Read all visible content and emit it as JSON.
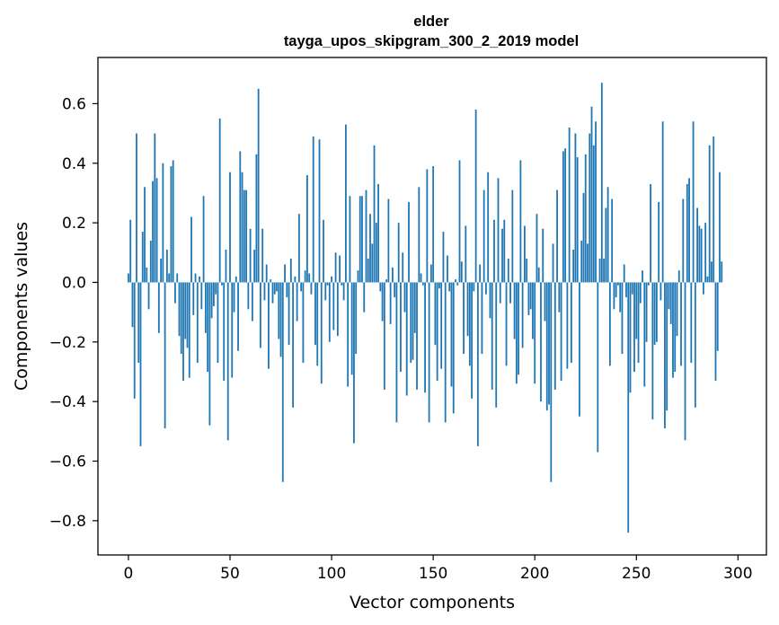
{
  "chart_data": {
    "type": "bar",
    "title": [
      "elder",
      "tayga_upos_skipgram_300_2_2019 model"
    ],
    "xlabel": "Vector components",
    "ylabel": "Components values",
    "xlim": [
      -15,
      314
    ],
    "ylim": [
      -0.915,
      0.755
    ],
    "xticks": [
      0,
      50,
      100,
      150,
      200,
      250,
      300
    ],
    "xtick_labels": [
      "0",
      "50",
      "100",
      "150",
      "200",
      "250",
      "300"
    ],
    "yticks": [
      -0.8,
      -0.6,
      -0.4,
      -0.2,
      0.0,
      0.2,
      0.4,
      0.6
    ],
    "ytick_labels": [
      "−0.8",
      "−0.6",
      "−0.4",
      "−0.2",
      "0.0",
      "0.2",
      "0.4",
      "0.6"
    ],
    "bar_color": "#1f77b4",
    "grid": false,
    "values": [
      0.03,
      0.21,
      -0.15,
      -0.39,
      0.5,
      -0.27,
      -0.55,
      0.17,
      0.32,
      0.05,
      -0.09,
      0.14,
      0.34,
      0.5,
      0.35,
      -0.17,
      0.08,
      0.4,
      -0.49,
      0.11,
      0.03,
      0.39,
      0.41,
      -0.07,
      0.03,
      -0.18,
      -0.24,
      -0.33,
      -0.19,
      -0.22,
      -0.32,
      0.22,
      -0.11,
      0.03,
      -0.27,
      0.02,
      -0.09,
      0.29,
      -0.17,
      -0.3,
      -0.48,
      -0.12,
      -0.08,
      -0.04,
      -0.27,
      0.55,
      -0.01,
      -0.33,
      0.11,
      -0.53,
      0.37,
      -0.32,
      -0.1,
      0.02,
      -0.23,
      0.44,
      0.37,
      0.31,
      0.31,
      -0.09,
      0.18,
      -0.13,
      0.11,
      0.43,
      0.65,
      -0.22,
      0.18,
      -0.06,
      0.06,
      -0.29,
      0.01,
      -0.07,
      -0.04,
      -0.03,
      -0.19,
      -0.25,
      -0.67,
      0.06,
      -0.05,
      -0.21,
      0.08,
      -0.42,
      0.02,
      -0.13,
      0.23,
      -0.03,
      -0.27,
      0.04,
      0.36,
      0.03,
      -0.04,
      0.49,
      -0.21,
      -0.28,
      0.48,
      -0.34,
      0.21,
      -0.06,
      -0.01,
      -0.2,
      0.02,
      -0.16,
      0.1,
      -0.18,
      0.09,
      -0.01,
      -0.06,
      0.53,
      -0.35,
      0.29,
      -0.31,
      -0.54,
      -0.24,
      0.04,
      0.29,
      0.29,
      -0.1,
      0.31,
      0.08,
      0.23,
      0.13,
      0.46,
      0.2,
      0.33,
      -0.03,
      -0.13,
      -0.36,
      0.01,
      0.28,
      -0.14,
      0.05,
      -0.05,
      -0.47,
      0.2,
      -0.3,
      0.1,
      -0.1,
      -0.38,
      0.27,
      -0.27,
      -0.26,
      -0.17,
      -0.36,
      0.32,
      0.03,
      -0.01,
      -0.37,
      0.38,
      -0.47,
      0.06,
      0.39,
      -0.21,
      -0.33,
      -0.02,
      -0.29,
      0.17,
      -0.47,
      0.09,
      -0.03,
      -0.35,
      -0.44,
      0.01,
      -0.01,
      0.41,
      0.07,
      -0.24,
      0.19,
      -0.18,
      -0.28,
      -0.39,
      -0.03,
      0.58,
      -0.55,
      0.06,
      -0.24,
      0.31,
      -0.04,
      0.37,
      -0.12,
      -0.36,
      0.21,
      -0.42,
      0.35,
      -0.07,
      0.18,
      0.21,
      -0.28,
      0.08,
      -0.07,
      0.31,
      -0.19,
      -0.34,
      -0.31,
      0.41,
      -0.22,
      0.19,
      0.08,
      -0.11,
      -0.09,
      -0.19,
      -0.34,
      0.23,
      0.05,
      -0.4,
      0.18,
      -0.13,
      -0.43,
      -0.41,
      -0.67,
      0.13,
      -0.36,
      0.31,
      -0.1,
      -0.33,
      0.44,
      0.45,
      -0.29,
      0.52,
      -0.27,
      0.11,
      0.5,
      0.42,
      -0.45,
      0.14,
      0.3,
      0.43,
      0.13,
      0.5,
      0.59,
      0.46,
      0.54,
      -0.57,
      0.08,
      0.67,
      0.08,
      0.25,
      0.32,
      -0.28,
      0.28,
      -0.09,
      -0.05,
      -0.01,
      -0.1,
      -0.24,
      0.06,
      -0.05,
      -0.84,
      -0.37,
      -0.04,
      -0.3,
      -0.19,
      -0.27,
      -0.07,
      0.04,
      -0.35,
      -0.2,
      -0.01,
      0.33,
      -0.46,
      -0.21,
      -0.2,
      0.27,
      -0.06,
      0.54,
      -0.49,
      -0.43,
      -0.09,
      -0.14,
      -0.32,
      -0.3,
      -0.18,
      0.04,
      -0.28,
      0.28,
      -0.53,
      0.33,
      0.35,
      -0.27,
      0.54,
      -0.42,
      0.25,
      0.19,
      0.18,
      -0.04,
      0.2,
      0.02,
      0.46,
      0.07,
      0.49,
      -0.33,
      -0.23,
      0.37,
      0.07
    ]
  }
}
